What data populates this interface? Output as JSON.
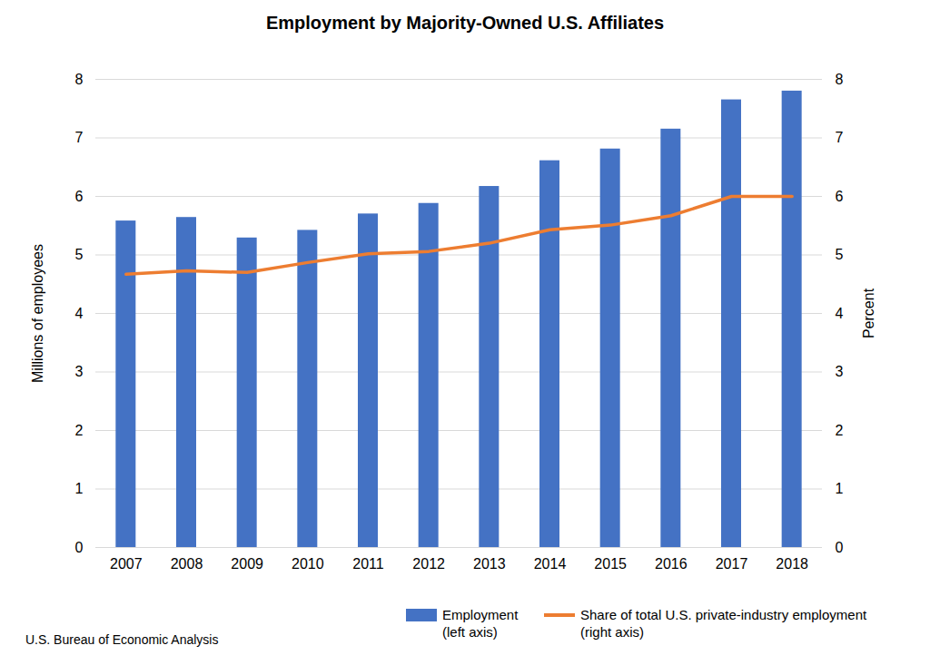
{
  "chart_data": {
    "type": "bar",
    "title": "Employment by Majority-Owned U.S. Affiliates",
    "categories": [
      "2007",
      "2008",
      "2009",
      "2010",
      "2011",
      "2012",
      "2013",
      "2014",
      "2015",
      "2016",
      "2017",
      "2018"
    ],
    "series": [
      {
        "name": "Employment (left axis)",
        "type": "bar",
        "color": "#4472c4",
        "values": [
          5.58,
          5.64,
          5.29,
          5.42,
          5.7,
          5.88,
          6.17,
          6.61,
          6.81,
          7.15,
          7.65,
          7.8
        ]
      },
      {
        "name": "Share of total U.S. private-industry employment (right axis)",
        "type": "line",
        "axis": "y2",
        "color": "#ed7d31",
        "values": [
          4.67,
          4.73,
          4.7,
          4.87,
          5.02,
          5.06,
          5.2,
          5.43,
          5.51,
          5.67,
          6.0,
          6.0
        ]
      }
    ],
    "ylabel": "Millions of employees",
    "y2label": "Percent",
    "ylim": [
      0,
      8
    ],
    "yticks": [
      0,
      1,
      2,
      3,
      4,
      5,
      6,
      7,
      8
    ],
    "y2lim": [
      0,
      8
    ],
    "y2ticks": [
      0,
      1,
      2,
      3,
      4,
      5,
      6,
      7,
      8
    ],
    "grid": true,
    "legend": "bottom",
    "source": "U.S. Bureau of Economic Analysis"
  }
}
